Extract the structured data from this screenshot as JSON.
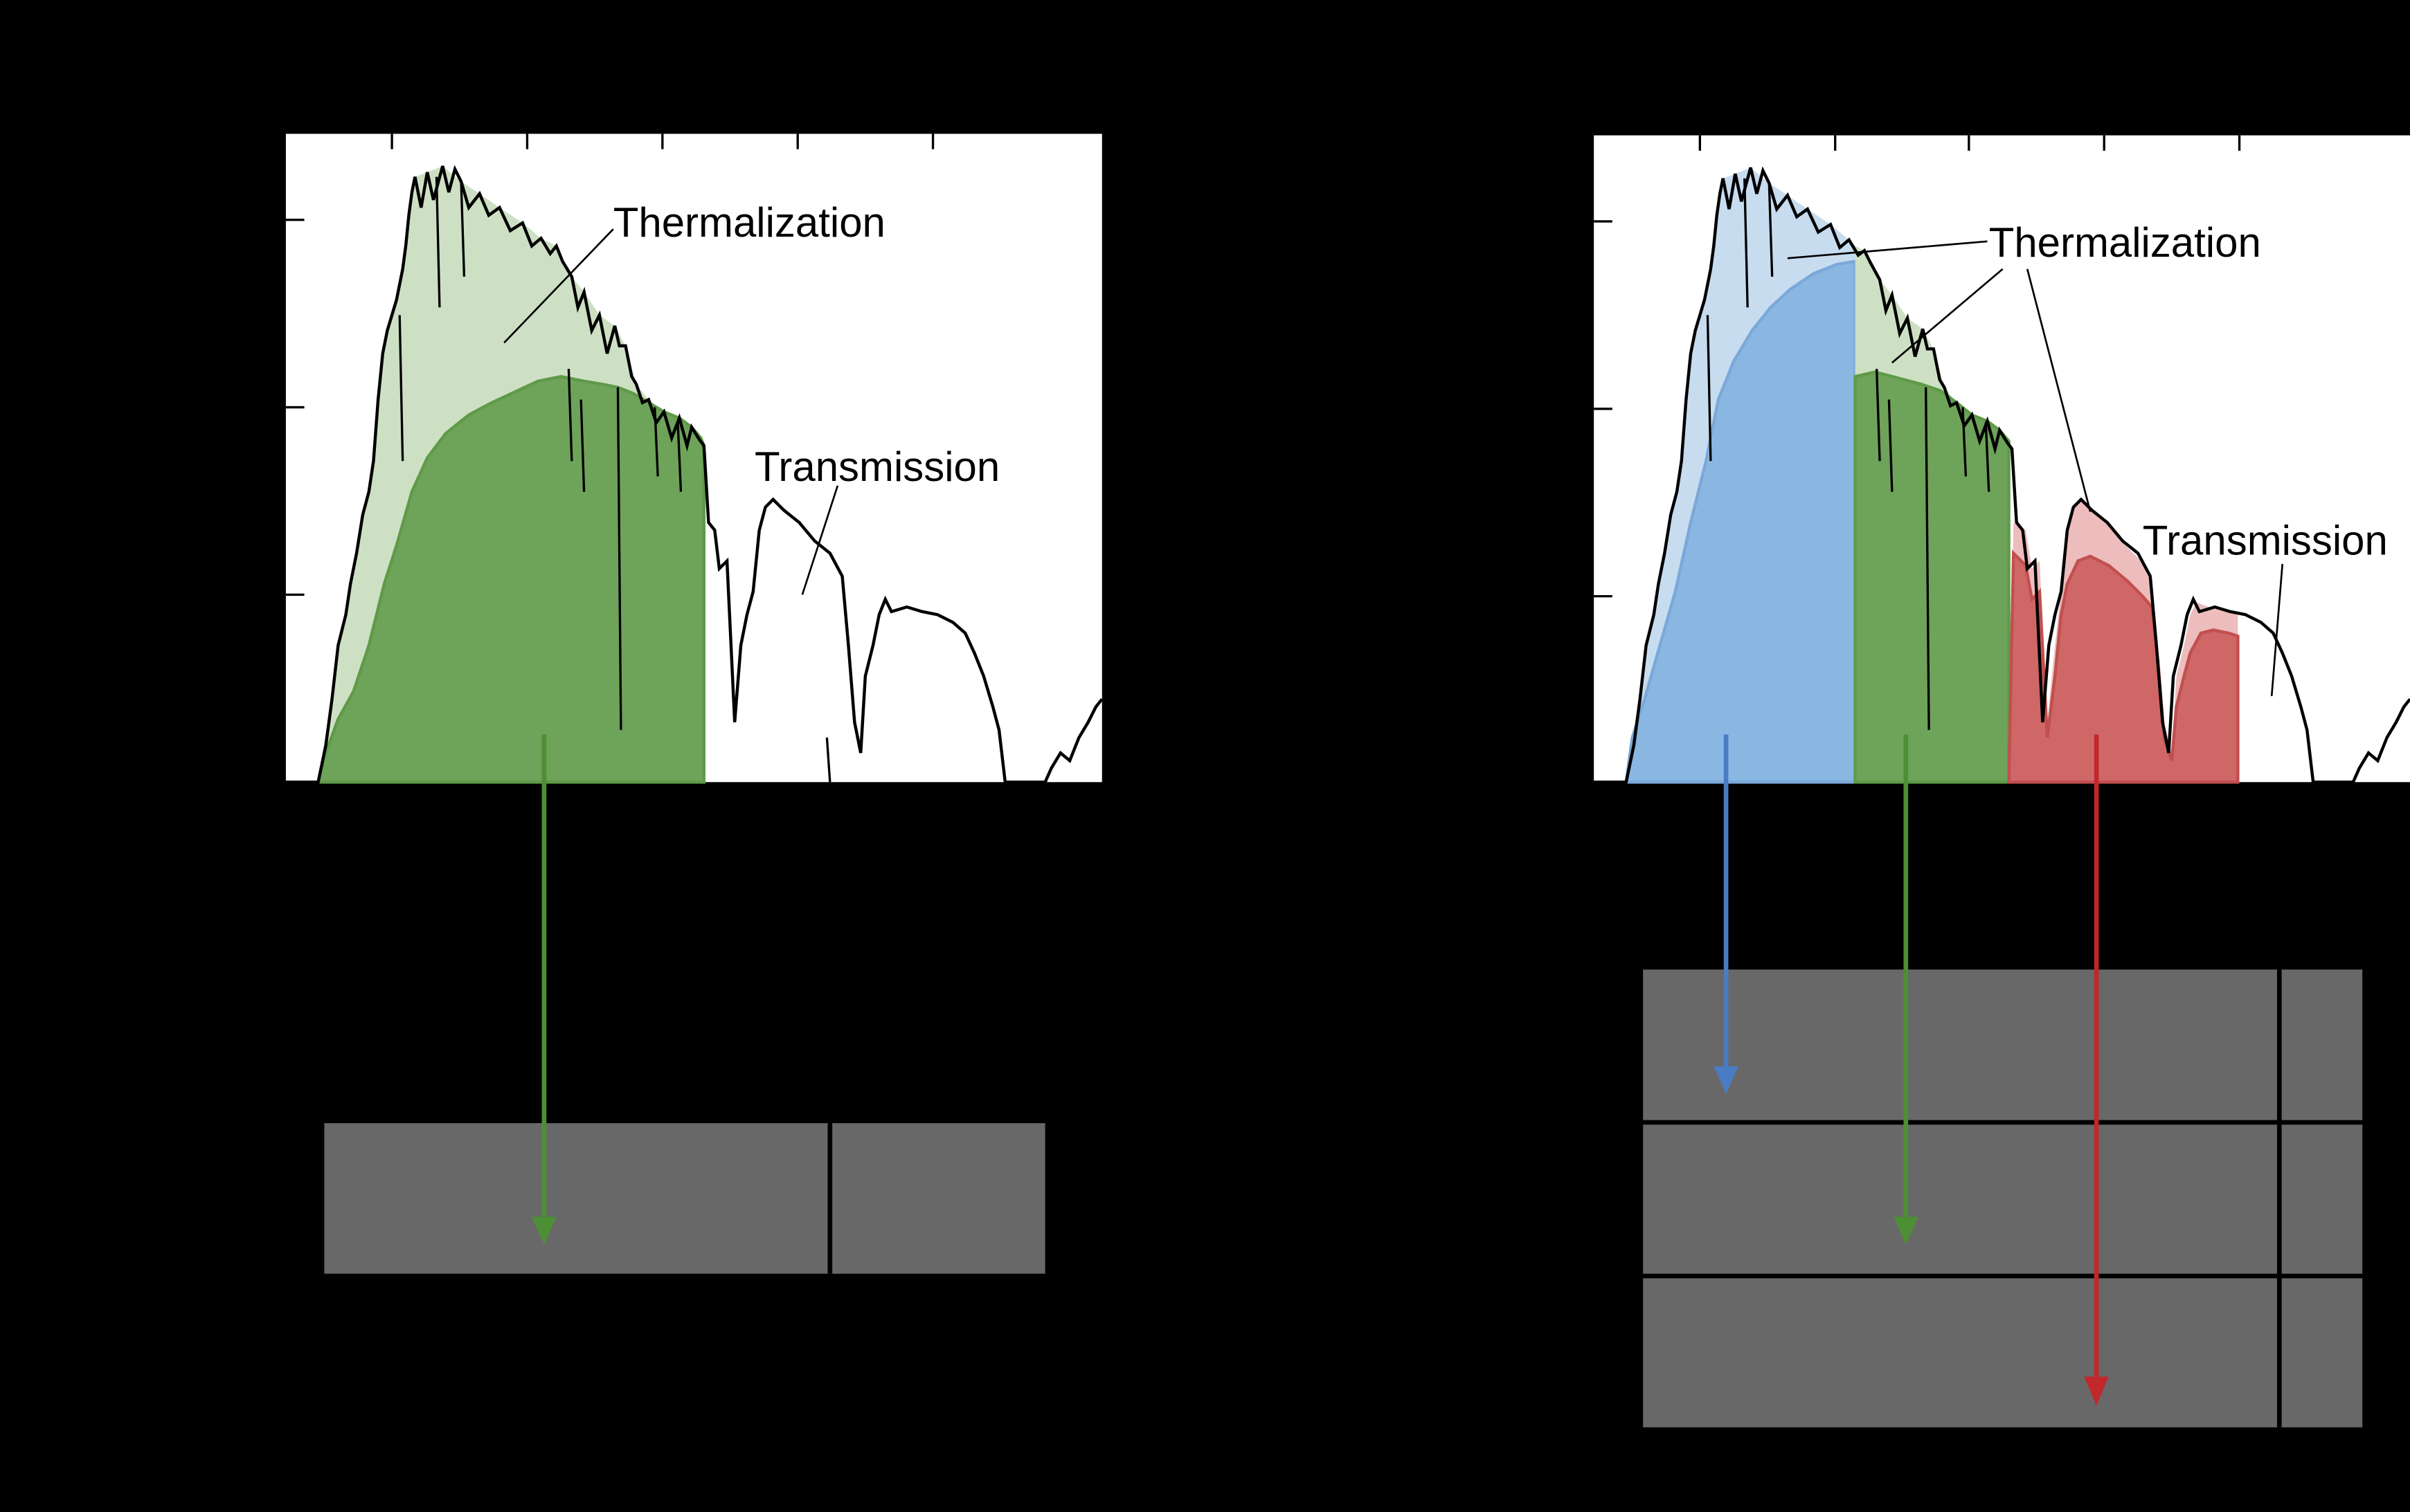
{
  "background_color": "#000000",
  "colors": {
    "panel_bg": "#ffffff",
    "spectrum_line": "#000000",
    "cell_fill": "#686868",
    "cell_divider": "#000000",
    "green_light": "#cde0c4",
    "green_dark": "#6ea35a",
    "green_arrow": "#4d8f34",
    "blue_light": "#c8dcf0",
    "blue_dark": "#8ab7e2",
    "blue_arrow": "#4a7cc4",
    "red_light": "#edbcbc",
    "red_dark": "#cf6767",
    "red_arrow": "#c0282c"
  },
  "left_panel": {
    "labels": {
      "thermalization": "Thermalization",
      "transmission": "Transmission"
    },
    "absorbed_band": "green",
    "arrow_color": "green"
  },
  "right_panel": {
    "labels": {
      "thermalization": "Thermalization",
      "transmission": "Transmission"
    },
    "absorbed_bands": [
      "blue",
      "green",
      "red"
    ],
    "arrow_colors": [
      "blue",
      "green",
      "red"
    ]
  }
}
